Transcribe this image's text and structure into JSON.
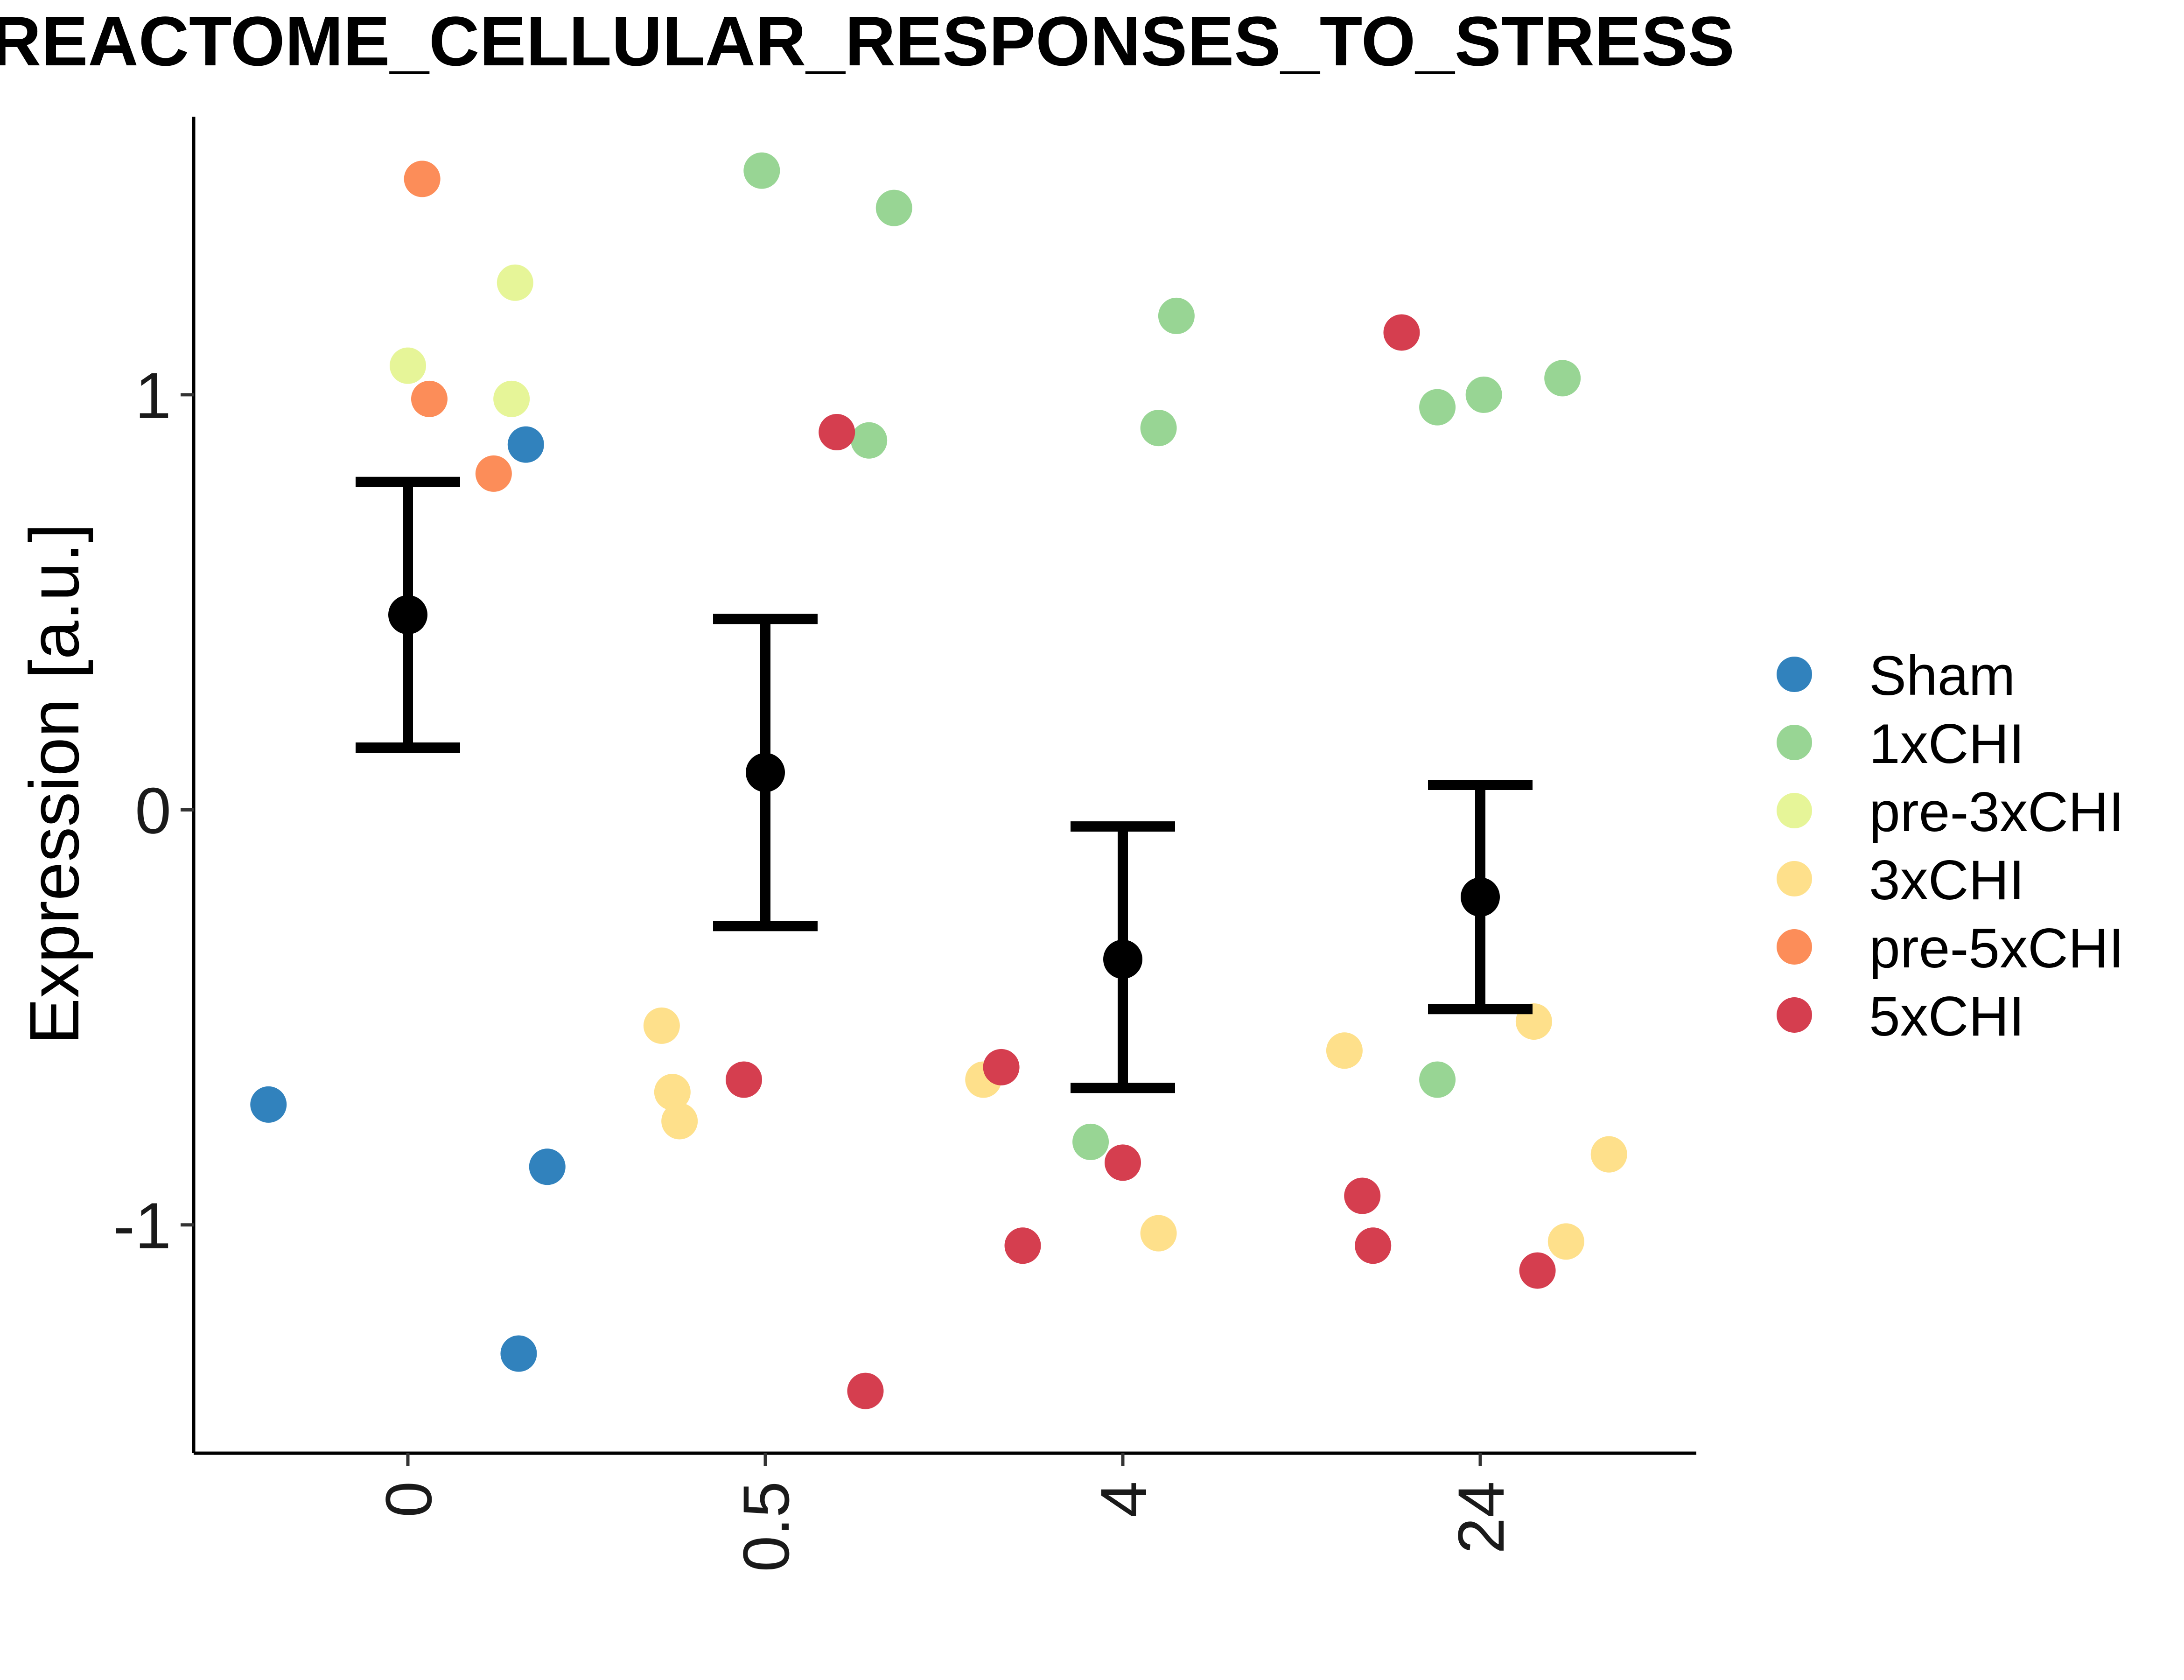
{
  "chart_data": {
    "type": "scatter",
    "title": "REACTOME_CELLULAR_RESPONSES_TO_STRESS",
    "xlabel": "",
    "ylabel": "Expression [a.u.]",
    "categories": [
      "0",
      "0.5",
      "4",
      "24"
    ],
    "y_ticks": [
      "1",
      "0",
      "-1"
    ],
    "y_tick_values": [
      1,
      0,
      -1
    ],
    "ylim": [
      -1.55,
      1.67
    ],
    "grid": false,
    "legend": {
      "position": "right",
      "title": "",
      "entries": [
        {
          "label": "Sham",
          "color": "#3182bd"
        },
        {
          "label": "1xCHI",
          "color": "#98d594"
        },
        {
          "label": "pre-3xCHI",
          "color": "#e6f598"
        },
        {
          "label": "3xCHI",
          "color": "#fee08b"
        },
        {
          "label": "pre-5xCHI",
          "color": "#fc8d59"
        },
        {
          "label": "5xCHI",
          "color": "#d53e4f"
        }
      ]
    },
    "summary": [
      {
        "category": "0",
        "mean": 0.47,
        "lower": 0.15,
        "upper": 0.79
      },
      {
        "category": "0.5",
        "mean": 0.09,
        "lower": -0.28,
        "upper": 0.46
      },
      {
        "category": "4",
        "mean": -0.36,
        "lower": -0.67,
        "upper": -0.04
      },
      {
        "category": "24",
        "mean": -0.21,
        "lower": -0.48,
        "upper": 0.06
      }
    ],
    "points": [
      {
        "category": "0",
        "jitter": -0.39,
        "y": -0.71,
        "group": "Sham"
      },
      {
        "category": "0",
        "jitter": 0.33,
        "y": 0.88,
        "group": "Sham"
      },
      {
        "category": "0",
        "jitter": 0.39,
        "y": -0.86,
        "group": "Sham"
      },
      {
        "category": "0",
        "jitter": 0.31,
        "y": -1.31,
        "group": "Sham"
      },
      {
        "category": "0",
        "jitter": 0.0,
        "y": 1.07,
        "group": "pre-3xCHI"
      },
      {
        "category": "0",
        "jitter": 0.3,
        "y": 1.27,
        "group": "pre-3xCHI"
      },
      {
        "category": "0",
        "jitter": 0.29,
        "y": 0.99,
        "group": "pre-3xCHI"
      },
      {
        "category": "0",
        "jitter": 0.04,
        "y": 1.52,
        "group": "pre-5xCHI"
      },
      {
        "category": "0",
        "jitter": 0.06,
        "y": 0.99,
        "group": "pre-5xCHI"
      },
      {
        "category": "0",
        "jitter": 0.24,
        "y": 0.81,
        "group": "pre-5xCHI"
      },
      {
        "category": "0.5",
        "jitter": -0.01,
        "y": 1.54,
        "group": "1xCHI"
      },
      {
        "category": "0.5",
        "jitter": 0.36,
        "y": 1.45,
        "group": "1xCHI"
      },
      {
        "category": "0.5",
        "jitter": 0.29,
        "y": 0.89,
        "group": "1xCHI"
      },
      {
        "category": "0.5",
        "jitter": -0.29,
        "y": -0.52,
        "group": "3xCHI"
      },
      {
        "category": "0.5",
        "jitter": -0.26,
        "y": -0.68,
        "group": "3xCHI"
      },
      {
        "category": "0.5",
        "jitter": -0.24,
        "y": -0.75,
        "group": "3xCHI"
      },
      {
        "category": "0.5",
        "jitter": -0.06,
        "y": -0.65,
        "group": "5xCHI"
      },
      {
        "category": "0.5",
        "jitter": 0.2,
        "y": 0.91,
        "group": "5xCHI"
      },
      {
        "category": "0.5",
        "jitter": 0.28,
        "y": -1.4,
        "group": "5xCHI"
      },
      {
        "category": "4",
        "jitter": 0.15,
        "y": 1.19,
        "group": "1xCHI"
      },
      {
        "category": "4",
        "jitter": 0.1,
        "y": 0.92,
        "group": "1xCHI"
      },
      {
        "category": "4",
        "jitter": -0.09,
        "y": -0.8,
        "group": "1xCHI"
      },
      {
        "category": "4",
        "jitter": -0.39,
        "y": -0.65,
        "group": "3xCHI"
      },
      {
        "category": "4",
        "jitter": 0.1,
        "y": -1.02,
        "group": "3xCHI"
      },
      {
        "category": "4",
        "jitter": -0.34,
        "y": -0.62,
        "group": "5xCHI"
      },
      {
        "category": "4",
        "jitter": -0.28,
        "y": -1.05,
        "group": "5xCHI"
      },
      {
        "category": "4",
        "jitter": 0.0,
        "y": -0.85,
        "group": "5xCHI"
      },
      {
        "category": "24",
        "jitter": -0.12,
        "y": 0.97,
        "group": "1xCHI"
      },
      {
        "category": "24",
        "jitter": 0.01,
        "y": 1.0,
        "group": "1xCHI"
      },
      {
        "category": "24",
        "jitter": 0.23,
        "y": 1.04,
        "group": "1xCHI"
      },
      {
        "category": "24",
        "jitter": -0.12,
        "y": -0.65,
        "group": "1xCHI"
      },
      {
        "category": "24",
        "jitter": -0.38,
        "y": -0.58,
        "group": "3xCHI"
      },
      {
        "category": "24",
        "jitter": 0.15,
        "y": -0.51,
        "group": "3xCHI"
      },
      {
        "category": "24",
        "jitter": 0.36,
        "y": -0.83,
        "group": "3xCHI"
      },
      {
        "category": "24",
        "jitter": 0.24,
        "y": -1.04,
        "group": "3xCHI"
      },
      {
        "category": "24",
        "jitter": -0.22,
        "y": 1.15,
        "group": "5xCHI"
      },
      {
        "category": "24",
        "jitter": -0.33,
        "y": -0.93,
        "group": "5xCHI"
      },
      {
        "category": "24",
        "jitter": -0.3,
        "y": -1.05,
        "group": "5xCHI"
      },
      {
        "category": "24",
        "jitter": 0.16,
        "y": -1.11,
        "group": "5xCHI"
      }
    ]
  }
}
